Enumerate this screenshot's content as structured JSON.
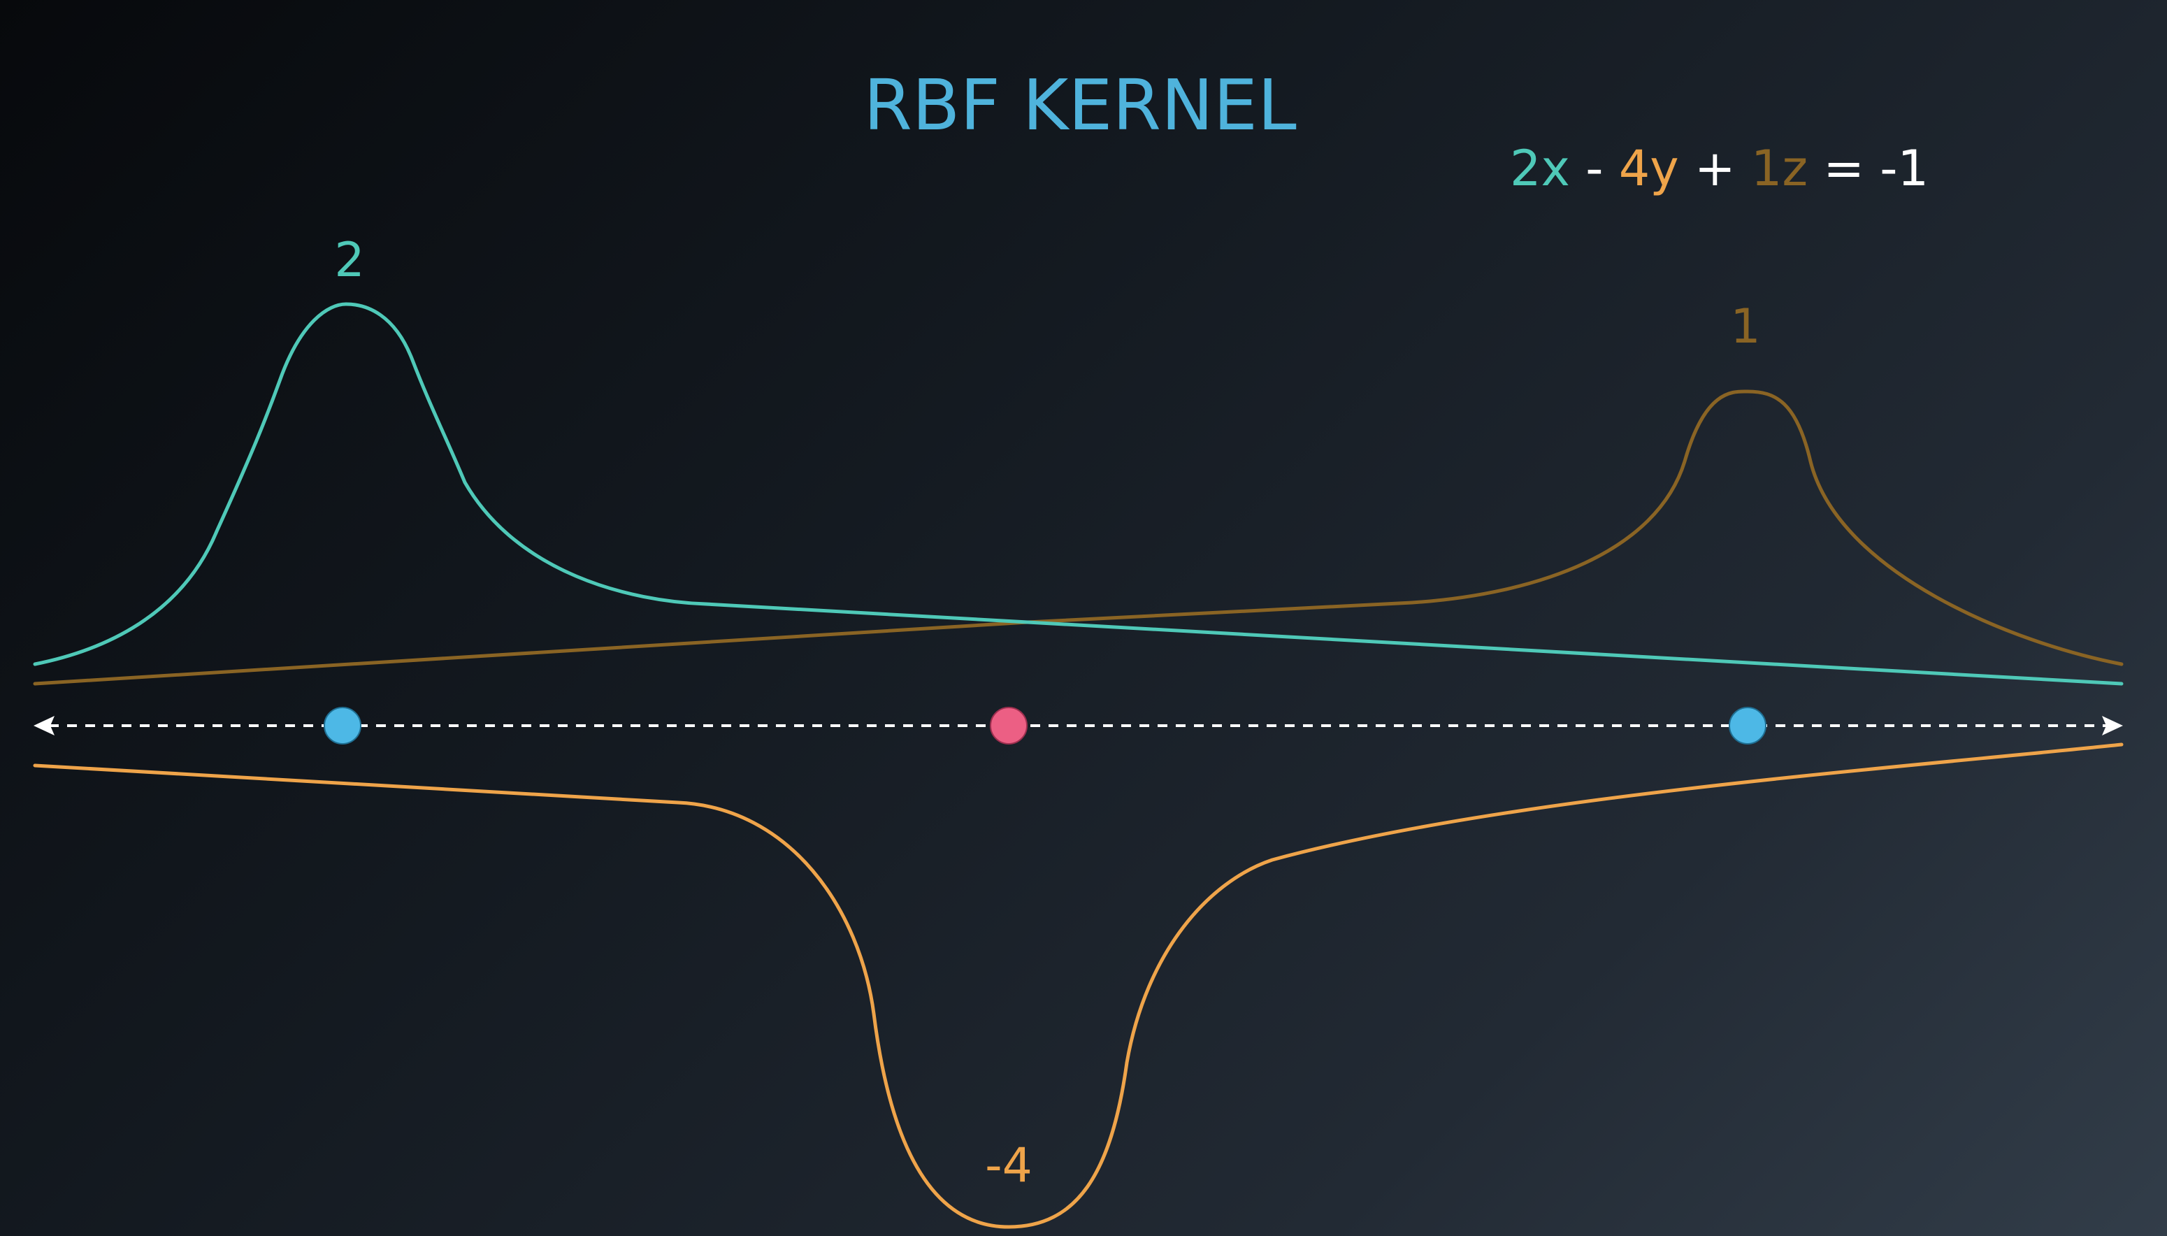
{
  "title": "RBF KERNEL",
  "equation": {
    "term1": "2x",
    "op1": " - ",
    "term2": "4y",
    "op2": " + ",
    "term3": "1z",
    "rhs": " = -1"
  },
  "peaks": [
    {
      "label": "2",
      "color": "#4fc9b8",
      "direction": "up"
    },
    {
      "label": "-4",
      "color": "#efa44a",
      "direction": "down"
    },
    {
      "label": "1",
      "color": "#8a6424",
      "direction": "up"
    }
  ],
  "points": [
    {
      "name": "point-left",
      "color": "#4db8e6"
    },
    {
      "name": "point-middle",
      "color": "#ec5f84"
    },
    {
      "name": "point-right",
      "color": "#4db8e6"
    }
  ],
  "colors": {
    "title": "#4fb3dc",
    "text_white": "#ffffff",
    "teal": "#4fc9b8",
    "orange": "#efa44a",
    "brown": "#8a6424",
    "axis": "#ffffff"
  }
}
